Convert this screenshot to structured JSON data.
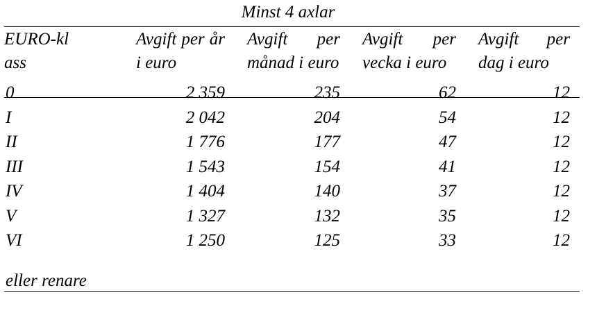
{
  "title": "Minst 4 axlar",
  "table": {
    "header": [
      "EURO-klass",
      "Avgift per år i euro",
      "Avgift per månad i euro",
      "Avgift per vecka i euro",
      "Avgift per dag i euro"
    ],
    "rows": [
      [
        "0",
        "2 359",
        "235",
        "62",
        "12"
      ],
      [
        "I",
        "2 042",
        "204",
        "54",
        "12"
      ],
      [
        "II",
        "1 776",
        "177",
        "47",
        "12"
      ],
      [
        "III",
        "1 543",
        "154",
        "41",
        "12"
      ],
      [
        "IV",
        "1 404",
        "140",
        "37",
        "12"
      ],
      [
        "V",
        "1 327",
        "132",
        "35",
        "12"
      ],
      [
        "VI",
        "1 250",
        "125",
        "33",
        "12"
      ]
    ],
    "footer": "eller renare"
  }
}
